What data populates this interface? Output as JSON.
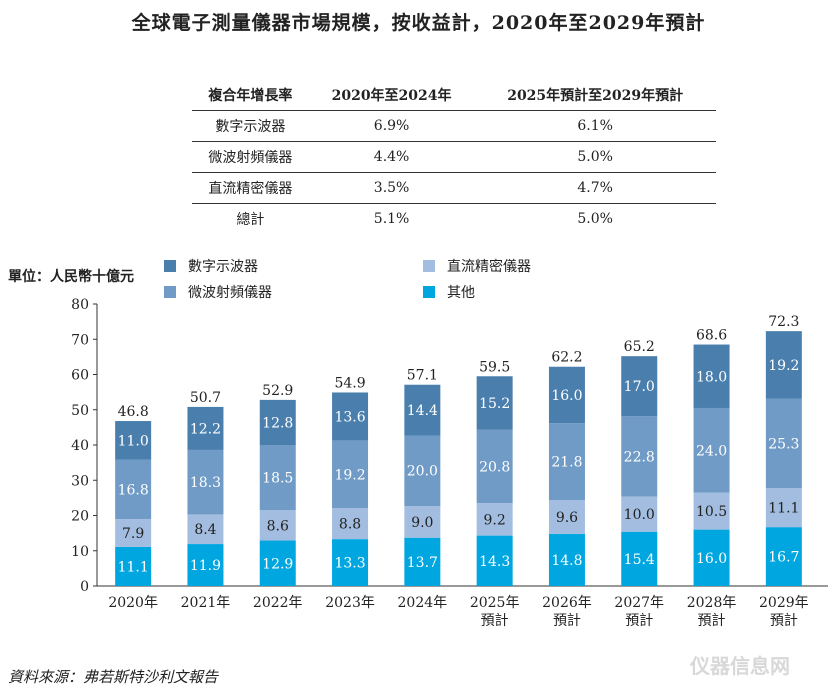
{
  "chart_data": {
    "type": "bar",
    "stacked": true,
    "title": "全球電子測量儀器市場規模，按收益計，2020年至2029年預計",
    "ylabel": "單位：人民幣十億元",
    "ylim": [
      0,
      80
    ],
    "yticks": [
      0,
      10,
      20,
      30,
      40,
      50,
      60,
      70,
      80
    ],
    "grid": false,
    "legend_position": "top",
    "categories": [
      [
        "2020年",
        ""
      ],
      [
        "2021年",
        ""
      ],
      [
        "2022年",
        ""
      ],
      [
        "2023年",
        ""
      ],
      [
        "2024年",
        ""
      ],
      [
        "2025年",
        "預計"
      ],
      [
        "2026年",
        "預計"
      ],
      [
        "2027年",
        "預計"
      ],
      [
        "2028年",
        "預計"
      ],
      [
        "2029年",
        "預計"
      ]
    ],
    "series": [
      {
        "name": "其他",
        "color": "#00a6e0",
        "label_color": "#ffffff",
        "values": [
          11.1,
          11.9,
          12.9,
          13.3,
          13.7,
          14.3,
          14.8,
          15.4,
          16.0,
          16.7
        ]
      },
      {
        "name": "直流精密儀器",
        "color": "#a3bde0",
        "label_color": "#222222",
        "values": [
          7.9,
          8.4,
          8.6,
          8.8,
          9.0,
          9.2,
          9.6,
          10.0,
          10.5,
          11.1
        ]
      },
      {
        "name": "微波射頻儀器",
        "color": "#6f9bc6",
        "label_color": "#ffffff",
        "values": [
          16.8,
          18.3,
          18.5,
          19.2,
          20.0,
          20.8,
          21.8,
          22.8,
          24.0,
          25.3
        ]
      },
      {
        "name": "數字示波器",
        "color": "#4a7fad",
        "label_color": "#ffffff",
        "values": [
          11.0,
          12.2,
          12.8,
          13.6,
          14.4,
          15.2,
          16.0,
          17.0,
          18.0,
          19.2
        ]
      }
    ],
    "totals": [
      46.8,
      50.7,
      52.9,
      54.9,
      57.1,
      59.5,
      62.2,
      65.2,
      68.6,
      72.3
    ]
  },
  "cagr_table": {
    "headers": [
      "複合年增長率",
      "2020年至2024年",
      "2025年預計至2029年預計"
    ],
    "rows": [
      [
        "數字示波器",
        "6.9%",
        "6.1%"
      ],
      [
        "微波射頻儀器",
        "4.4%",
        "5.0%"
      ],
      [
        "直流精密儀器",
        "3.5%",
        "4.7%"
      ],
      [
        "總計",
        "5.1%",
        "5.0%"
      ]
    ]
  },
  "legend": [
    {
      "label": "數字示波器",
      "color": "#4a7fad"
    },
    {
      "label": "直流精密儀器",
      "color": "#a3bde0"
    },
    {
      "label": "微波射頻儀器",
      "color": "#6f9bc6"
    },
    {
      "label": "其他",
      "color": "#00a6e0"
    }
  ],
  "source": "資料來源：弗若斯特沙利文報告",
  "watermark": "仪器信息网"
}
